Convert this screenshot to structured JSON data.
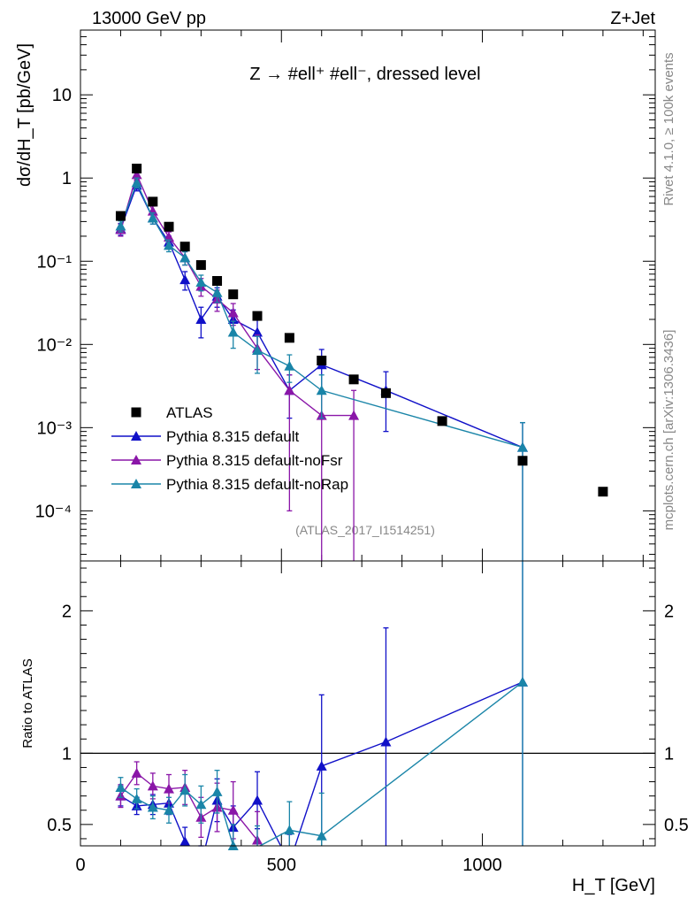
{
  "header": {
    "energy": "13000 GeV pp",
    "process": "Z+Jet"
  },
  "side_text": {
    "rivet": "Rivet 4.1.0, ≥ 100k events",
    "mcplots": "mcplots.cern.ch [arXiv:1306.3436]"
  },
  "analysis_id": "(ATLAS_2017_I1514251)",
  "colors": {
    "data": "#000000",
    "default": "#1010c8",
    "noFsr": "#8a16a8",
    "noRap": "#1a85a8",
    "reference_line": "#000000"
  },
  "chart_data": [
    {
      "type": "scatter",
      "panel": "main",
      "title": "Z → #ell⁺ #ell⁻, dressed level",
      "xlabel": "H_T [GeV]",
      "ylabel": "dσ/dH_T [pb/GeV]",
      "yscale": "log",
      "xlim": [
        0,
        1430
      ],
      "ylim": [
        2.5e-05,
        60
      ],
      "x_ticks": [
        "0",
        "500",
        "1000"
      ],
      "y_ticks": [
        "10⁻⁴",
        "10⁻³",
        "10⁻²",
        "10⁻¹",
        "1",
        "10"
      ],
      "legend_position": "lower-left",
      "series": [
        {
          "name": "ATLAS",
          "key": "data",
          "marker": "square",
          "line": false,
          "x": [
            100,
            140,
            180,
            220,
            260,
            300,
            340,
            380,
            440,
            520,
            600,
            680,
            760,
            900,
            1100,
            1300
          ],
          "y": [
            0.35,
            1.3,
            0.52,
            0.26,
            0.15,
            0.09,
            0.058,
            0.04,
            0.022,
            0.012,
            0.0064,
            0.0038,
            0.0026,
            0.0012,
            0.0004,
            0.00017
          ]
        },
        {
          "name": "Pythia 8.315 default",
          "key": "default",
          "marker": "triangle",
          "line": true,
          "x": [
            100,
            140,
            180,
            220,
            260,
            300,
            340,
            380,
            440,
            520,
            600,
            760,
            1100
          ],
          "y": [
            0.245,
            0.82,
            0.33,
            0.17,
            0.06,
            0.02,
            0.038,
            0.02,
            0.014,
            0.0028,
            0.0057,
            0.0028,
            0.00058
          ],
          "err_low": [
            0.04,
            0.12,
            0.05,
            0.03,
            0.015,
            0.008,
            0.01,
            0.006,
            0.006,
            0.0015,
            0.003,
            0.0019,
            0.00057
          ],
          "err_high": [
            0.04,
            0.12,
            0.05,
            0.03,
            0.015,
            0.008,
            0.01,
            0.006,
            0.006,
            0.0015,
            0.003,
            0.0019,
            0.00057
          ]
        },
        {
          "name": "Pythia 8.315 default-noFsr",
          "key": "noFsr",
          "marker": "triangle",
          "line": true,
          "x": [
            100,
            140,
            180,
            220,
            260,
            300,
            340,
            380,
            440,
            520,
            600,
            680
          ],
          "y": [
            0.24,
            1.1,
            0.4,
            0.195,
            0.11,
            0.05,
            0.035,
            0.024,
            0.009,
            0.0028,
            0.0014,
            0.0014
          ],
          "err_low": [
            0.04,
            0.15,
            0.06,
            0.03,
            0.02,
            0.012,
            0.01,
            0.007,
            0.004,
            0.0027,
            0.00138,
            0.00138
          ],
          "err_high": [
            0.04,
            0.15,
            0.06,
            0.03,
            0.02,
            0.012,
            0.01,
            0.007,
            0.004,
            0.0015,
            0.0014,
            0.0014
          ]
        },
        {
          "name": "Pythia 8.315 default-noRap",
          "key": "noRap",
          "marker": "triangle",
          "line": true,
          "x": [
            100,
            140,
            180,
            220,
            260,
            300,
            340,
            380,
            440,
            520,
            600,
            1100
          ],
          "y": [
            0.265,
            0.88,
            0.33,
            0.155,
            0.11,
            0.056,
            0.042,
            0.014,
            0.0085,
            0.0055,
            0.0028,
            0.00058
          ],
          "err_low": [
            0.04,
            0.12,
            0.05,
            0.025,
            0.02,
            0.012,
            0.01,
            0.005,
            0.004,
            0.002,
            0.0015,
            0.00057
          ],
          "err_high": [
            0.04,
            0.12,
            0.05,
            0.025,
            0.02,
            0.012,
            0.01,
            0.005,
            0.004,
            0.002,
            0.0015,
            0.00057
          ]
        }
      ]
    },
    {
      "type": "line",
      "panel": "ratio",
      "ylabel": "Ratio to ATLAS",
      "xlabel": "H_T [GeV]",
      "xlim": [
        0,
        1430
      ],
      "ylim": [
        0.35,
        2.35
      ],
      "y_ticks": [
        "0.5",
        "1",
        "2"
      ],
      "x_ticks": [
        "0",
        "500",
        "1000"
      ],
      "reference": 1,
      "series": [
        {
          "name": "Pythia 8.315 default",
          "key": "default",
          "x": [
            100,
            140,
            180,
            220,
            260,
            300,
            340,
            380,
            440,
            520,
            600,
            760,
            1100
          ],
          "y": [
            0.7,
            0.63,
            0.64,
            0.65,
            0.38,
            0.22,
            0.67,
            0.48,
            0.67,
            0.23,
            0.91,
            1.08,
            1.5
          ],
          "err": [
            0.07,
            0.06,
            0.07,
            0.08,
            0.1,
            0.12,
            0.15,
            0.15,
            0.2,
            0.2,
            0.5,
            0.8,
            1.4
          ]
        },
        {
          "name": "Pythia 8.315 default-noFsr",
          "key": "noFsr",
          "x": [
            100,
            140,
            180,
            220,
            260,
            300,
            340,
            380,
            440
          ],
          "y": [
            0.7,
            0.86,
            0.77,
            0.75,
            0.76,
            0.55,
            0.62,
            0.6,
            0.39
          ],
          "err": [
            0.08,
            0.08,
            0.09,
            0.1,
            0.12,
            0.14,
            0.17,
            0.2,
            0.2
          ]
        },
        {
          "name": "Pythia 8.315 default-noRap",
          "key": "noRap",
          "x": [
            100,
            140,
            180,
            220,
            260,
            300,
            340,
            380,
            440,
            520,
            600,
            1100
          ],
          "y": [
            0.76,
            0.68,
            0.62,
            0.6,
            0.74,
            0.64,
            0.73,
            0.35,
            0.34,
            0.46,
            0.42,
            1.5
          ],
          "err": [
            0.07,
            0.07,
            0.08,
            0.09,
            0.11,
            0.13,
            0.15,
            0.15,
            0.15,
            0.2,
            0.3,
            1.4
          ]
        }
      ]
    }
  ]
}
